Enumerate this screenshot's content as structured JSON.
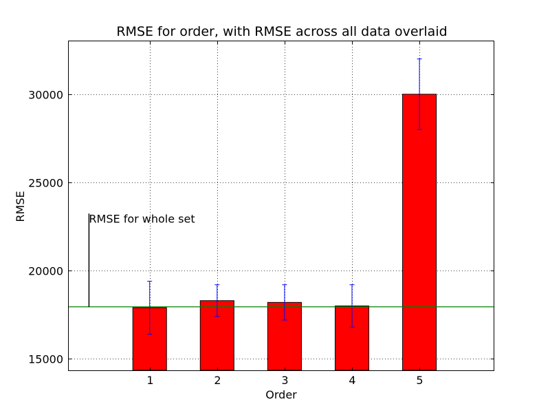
{
  "chart_data": {
    "type": "bar",
    "title": "RMSE for order, with RMSE across all data overlaid",
    "xlabel": "Order",
    "ylabel": "RMSE",
    "categories": [
      "1",
      "2",
      "3",
      "4",
      "5"
    ],
    "values": [
      17900,
      18300,
      18200,
      18000,
      30000
    ],
    "error_lower": [
      16400,
      17400,
      17200,
      16800,
      28000
    ],
    "error_upper": [
      19400,
      19200,
      19200,
      19200,
      32000
    ],
    "ylim": [
      14350,
      33000
    ],
    "yticks": [
      "15000",
      "20000",
      "25000",
      "30000"
    ],
    "ytick_values": [
      15000,
      20000,
      25000,
      30000
    ],
    "reference_line": {
      "value": 17950,
      "label": "RMSE for whole set"
    },
    "grid": true,
    "bar_color": "#ff0000",
    "errorbar_color": "#0000ff",
    "reference_color": "#008000"
  }
}
